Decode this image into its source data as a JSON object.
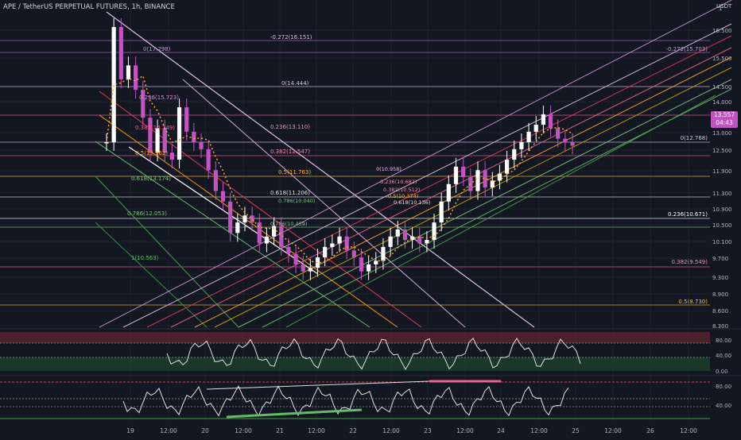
{
  "header": {
    "symbol_line": "APE / TetherUS PERPETUAL FUTURES, 1h, BINANCE",
    "currency": "USDT",
    "top_value": "1"
  },
  "price_badge": {
    "price": "13.557",
    "countdown": "04:43"
  },
  "price_axis": {
    "labels": [
      "16.500",
      "15.500",
      "14.500",
      "14.000",
      "13.000",
      "12.500",
      "11.900",
      "11.300",
      "10.900",
      "10.500",
      "10.100",
      "9.700",
      "9.300",
      "8.900",
      "8.600",
      "8.300"
    ]
  },
  "oscillator1_axis": [
    "80.00",
    "40.00",
    "0.00"
  ],
  "oscillator2_axis": [
    "80.00",
    "40.00"
  ],
  "time_axis": [
    "19",
    "12:00",
    "20",
    "12:00",
    "21",
    "12:00",
    "22",
    "12:00",
    "23",
    "12:00",
    "24",
    "12:00",
    "25",
    "12:00",
    "26",
    "12:00"
  ],
  "fib_levels_a": [
    {
      "text": "-0.272(16.151)",
      "color": "#e1bee7"
    },
    {
      "text": "0(17.298)",
      "color": "#ce93d8"
    },
    {
      "text": "0(14.444)",
      "color": "#e1bee7"
    },
    {
      "text": "0.236(13.110)",
      "color": "#f48fb1"
    },
    {
      "text": "0.382(12.547)",
      "color": "#f48fb1"
    },
    {
      "text": "0.5(11.763)",
      "color": "#ffb74d"
    },
    {
      "text": "0.618(11.206)",
      "color": "#e0e0e0"
    },
    {
      "text": "0.236(15.723)",
      "color": "#ce93d8"
    },
    {
      "text": "0.382(14.749)",
      "color": "#f06292"
    },
    {
      "text": "0.5(13.962)",
      "color": "#ffa726"
    },
    {
      "text": "0.618(13.174)",
      "color": "#81c784"
    },
    {
      "text": "0.786(12.053)",
      "color": "#81c784"
    },
    {
      "text": "1(10.563)",
      "color": "#66bb6a"
    }
  ],
  "fib_levels_b": [
    {
      "text": "-0.272(15.703)",
      "color": "#ce93d8"
    },
    {
      "text": "0(12.768)",
      "color": "#e1bee7"
    },
    {
      "text": "0.236(10.671)",
      "color": "#ffffff"
    },
    {
      "text": "0.382(9.549)",
      "color": "#f48fb1"
    },
    {
      "text": "0.5(8.730)",
      "color": "#ffb74d"
    }
  ],
  "fib_levels_c": [
    {
      "text": "0(10.958)",
      "color": "#e1bee7"
    },
    {
      "text": "0.236(10.682)",
      "color": "#f48fb1"
    },
    {
      "text": "0.382(10.512)",
      "color": "#f48fb1"
    },
    {
      "text": "0.5(10.374)",
      "color": "#ffb74d"
    },
    {
      "text": "0.618(10.136)",
      "color": "#e0e0e0"
    },
    {
      "text": "0.786(10.040)",
      "color": "#81c784"
    },
    {
      "text": "0.786(10.459)",
      "color": "#81c784"
    }
  ],
  "colors": {
    "background": "#131722",
    "candle_up": "#ffffff",
    "candle_down": "#c154c1",
    "grid": "#1f2430"
  },
  "chart_data": {
    "type": "line",
    "series": [
      {
        "values": [
          13.6,
          16.9,
          15.4,
          15.8,
          15.1,
          14.3,
          13.3,
          14.0,
          13.3,
          13.1,
          14.6,
          13.9,
          13.6,
          13.4,
          12.8,
          12.2,
          11.9,
          11.0,
          11.3,
          11.5,
          11.3,
          10.7,
          10.9,
          11.2,
          10.6,
          10.4,
          10.1,
          9.9,
          10.0,
          10.3,
          10.6,
          10.7,
          10.9,
          10.5,
          10.3,
          9.9,
          10.1,
          10.2,
          10.6,
          10.9,
          11.1,
          10.8,
          10.9,
          10.7,
          10.8,
          11.3,
          11.9,
          12.4,
          12.9,
          12.6,
          12.2,
          12.8,
          12.3,
          12.5,
          12.7,
          13.1,
          13.4,
          13.6,
          13.9,
          14.1,
          14.4,
          14.0,
          13.7,
          13.6,
          13.5
        ]
      }
    ],
    "y_range": [
      8.3,
      17.4
    ]
  }
}
